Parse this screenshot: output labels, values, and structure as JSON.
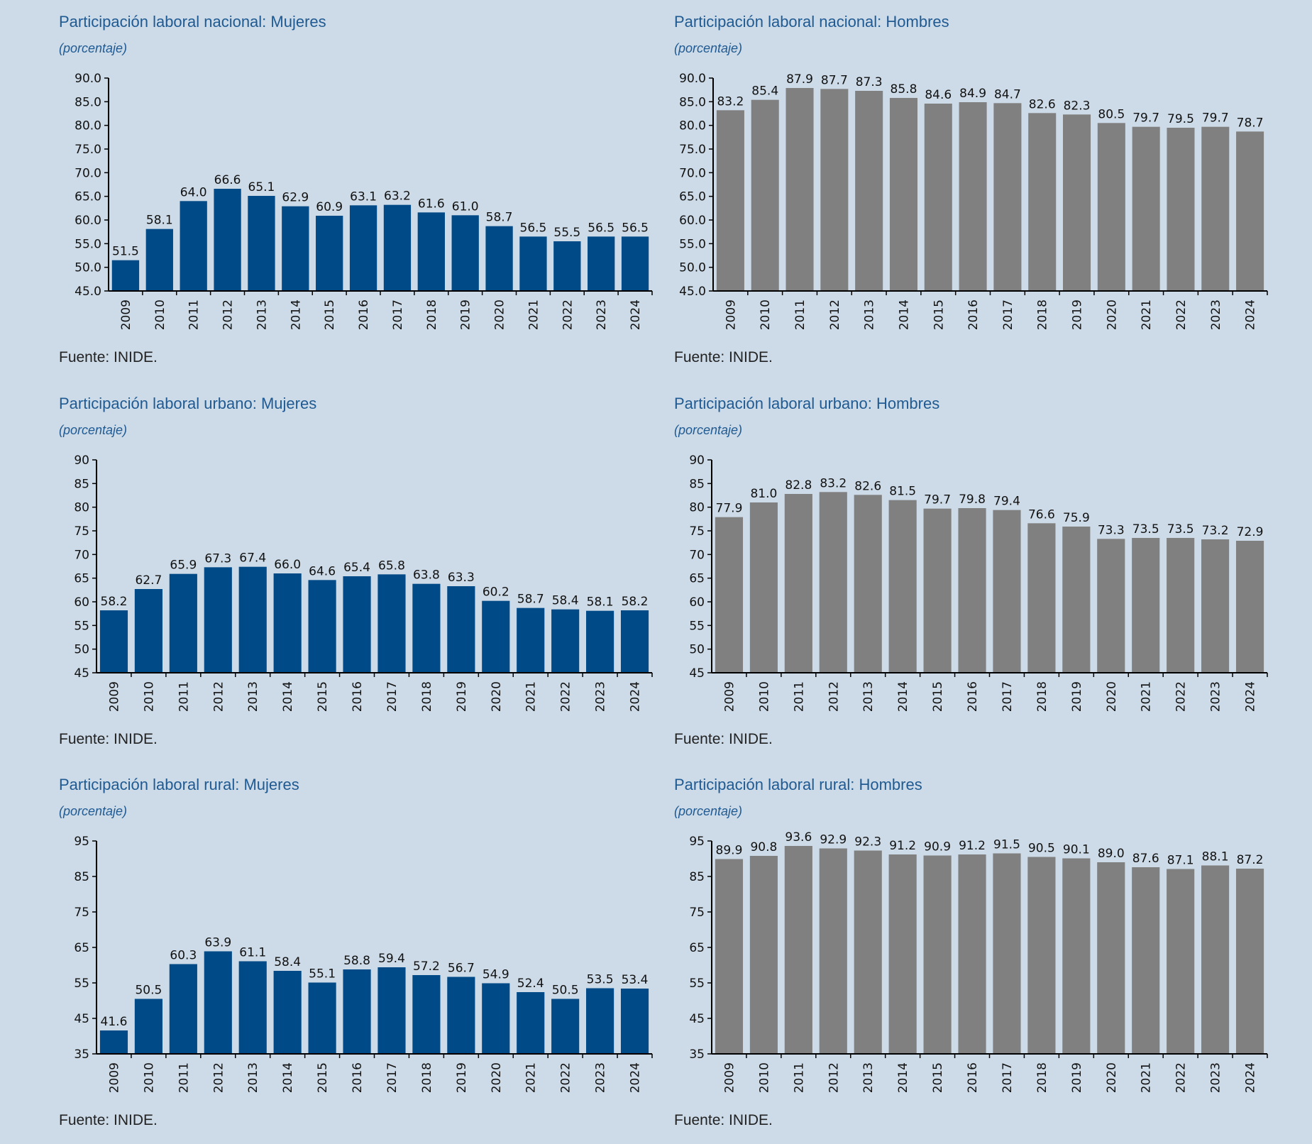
{
  "source_label": "Fuente: INIDE.",
  "subtitle_label": "(porcentaje)",
  "colors": {
    "mujeres": "#004a87",
    "hombres": "#808080",
    "background": "#cddbe8",
    "title": "#1f5a92"
  },
  "chart_data": [
    {
      "type": "bar",
      "title": "Participación laboral nacional: Mujeres",
      "subtitle": "(porcentaje)",
      "categories": [
        "2009",
        "2010",
        "2011",
        "2012",
        "2013",
        "2014",
        "2015",
        "2016",
        "2017",
        "2018",
        "2019",
        "2020",
        "2021",
        "2022",
        "2023",
        "2024"
      ],
      "values": [
        51.5,
        58.1,
        64.0,
        66.6,
        65.1,
        62.9,
        60.9,
        63.1,
        63.2,
        61.6,
        61.0,
        58.7,
        56.5,
        55.5,
        56.5,
        56.5
      ],
      "ylim": [
        45,
        90
      ],
      "yticks": [
        "45.0",
        "50.0",
        "55.0",
        "60.0",
        "65.0",
        "70.0",
        "75.0",
        "80.0",
        "85.0",
        "90.0"
      ],
      "color": "#004a87",
      "source": "Fuente: INIDE."
    },
    {
      "type": "bar",
      "title": "Participación laboral nacional: Hombres",
      "subtitle": "(porcentaje)",
      "categories": [
        "2009",
        "2010",
        "2011",
        "2012",
        "2013",
        "2014",
        "2015",
        "2016",
        "2017",
        "2018",
        "2019",
        "2020",
        "2021",
        "2022",
        "2023",
        "2024"
      ],
      "values": [
        83.2,
        85.4,
        87.9,
        87.7,
        87.3,
        85.8,
        84.6,
        84.9,
        84.7,
        82.6,
        82.3,
        80.5,
        79.7,
        79.5,
        79.7,
        78.7
      ],
      "ylim": [
        45,
        90
      ],
      "yticks": [
        "45.0",
        "50.0",
        "55.0",
        "60.0",
        "65.0",
        "70.0",
        "75.0",
        "80.0",
        "85.0",
        "90.0"
      ],
      "color": "#808080",
      "source": "Fuente: INIDE."
    },
    {
      "type": "bar",
      "title": "Participación laboral urbano: Mujeres",
      "subtitle": "(porcentaje)",
      "categories": [
        "2009",
        "2010",
        "2011",
        "2012",
        "2013",
        "2014",
        "2015",
        "2016",
        "2017",
        "2018",
        "2019",
        "2020",
        "2021",
        "2022",
        "2023",
        "2024"
      ],
      "values": [
        58.2,
        62.7,
        65.9,
        67.3,
        67.4,
        66.0,
        64.6,
        65.4,
        65.8,
        63.8,
        63.3,
        60.2,
        58.7,
        58.4,
        58.1,
        58.2
      ],
      "ylim": [
        45,
        90
      ],
      "yticks": [
        "45",
        "50",
        "55",
        "60",
        "65",
        "70",
        "75",
        "80",
        "85",
        "90"
      ],
      "color": "#004a87",
      "source": "Fuente: INIDE."
    },
    {
      "type": "bar",
      "title": "Participación laboral urbano: Hombres",
      "subtitle": "(porcentaje)",
      "categories": [
        "2009",
        "2010",
        "2011",
        "2012",
        "2013",
        "2014",
        "2015",
        "2016",
        "2017",
        "2018",
        "2019",
        "2020",
        "2021",
        "2022",
        "2023",
        "2024"
      ],
      "values": [
        77.9,
        81.0,
        82.8,
        83.2,
        82.6,
        81.5,
        79.7,
        79.8,
        79.4,
        76.6,
        75.9,
        73.3,
        73.5,
        73.5,
        73.2,
        72.9
      ],
      "ylim": [
        45,
        90
      ],
      "yticks": [
        "45",
        "50",
        "55",
        "60",
        "65",
        "70",
        "75",
        "80",
        "85",
        "90"
      ],
      "color": "#808080",
      "source": "Fuente: INIDE."
    },
    {
      "type": "bar",
      "title": "Participación laboral rural: Mujeres",
      "subtitle": "(porcentaje)",
      "categories": [
        "2009",
        "2010",
        "2011",
        "2012",
        "2013",
        "2014",
        "2015",
        "2016",
        "2017",
        "2018",
        "2019",
        "2020",
        "2021",
        "2022",
        "2023",
        "2024"
      ],
      "values": [
        41.6,
        50.5,
        60.3,
        63.9,
        61.1,
        58.4,
        55.1,
        58.8,
        59.4,
        57.2,
        56.7,
        54.9,
        52.4,
        50.5,
        53.5,
        53.4
      ],
      "ylim": [
        35,
        95
      ],
      "yticks": [
        "35",
        "45",
        "55",
        "65",
        "75",
        "85",
        "95"
      ],
      "color": "#004a87",
      "source": "Fuente: INIDE."
    },
    {
      "type": "bar",
      "title": "Participación laboral rural: Hombres",
      "subtitle": "(porcentaje)",
      "categories": [
        "2009",
        "2010",
        "2011",
        "2012",
        "2013",
        "2014",
        "2015",
        "2016",
        "2017",
        "2018",
        "2019",
        "2020",
        "2021",
        "2022",
        "2023",
        "2024"
      ],
      "values": [
        89.9,
        90.8,
        93.6,
        92.9,
        92.3,
        91.2,
        90.9,
        91.2,
        91.5,
        90.5,
        90.1,
        89.0,
        87.6,
        87.1,
        88.1,
        87.2
      ],
      "ylim": [
        35,
        95
      ],
      "yticks": [
        "35",
        "45",
        "55",
        "65",
        "75",
        "85",
        "95"
      ],
      "color": "#808080",
      "source": "Fuente: INIDE."
    }
  ]
}
